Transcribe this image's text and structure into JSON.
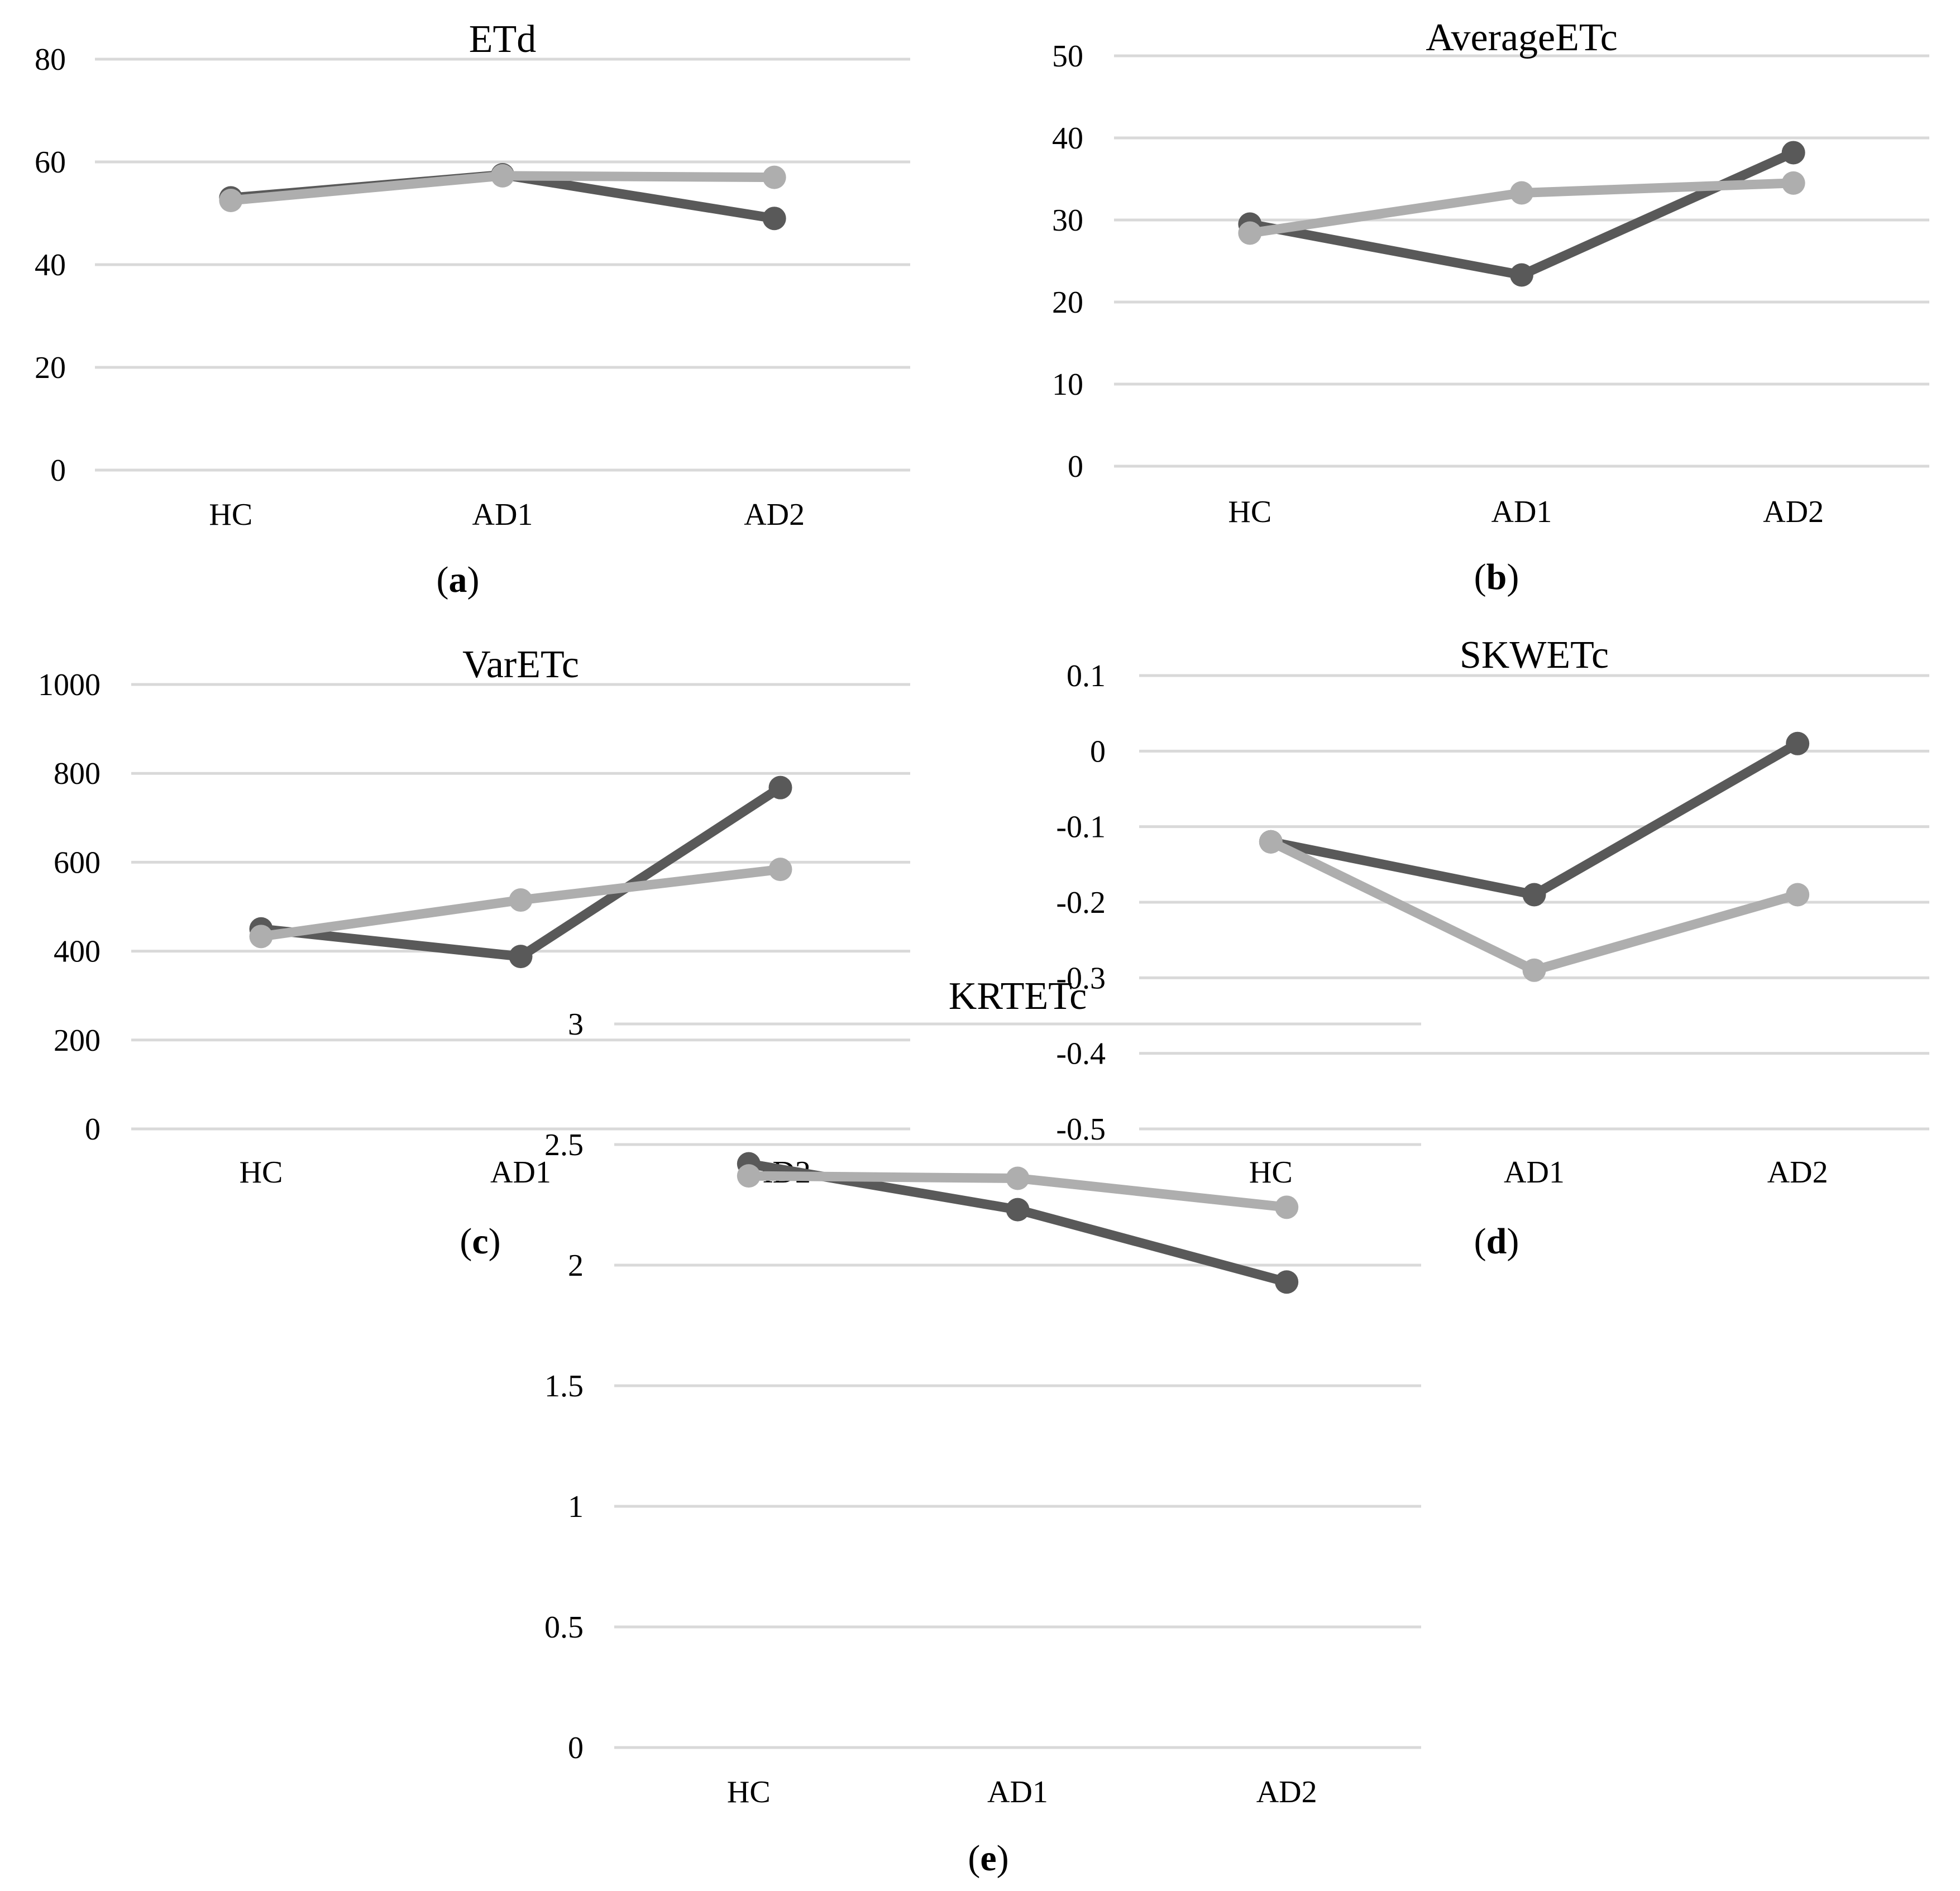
{
  "colors": {
    "series_dark": "#595959",
    "series_light": "#aeaeae",
    "grid": "#d9d9d9"
  },
  "chart_data": [
    {
      "panel": "a",
      "type": "line",
      "title": "ETd",
      "caption": "a",
      "categories": [
        "HC",
        "AD1",
        "AD2"
      ],
      "y_ticks": [
        0,
        20,
        40,
        60,
        80
      ],
      "ylim": [
        0,
        80
      ],
      "series": [
        {
          "name": "dark",
          "values": [
            53,
            57.5,
            49
          ]
        },
        {
          "name": "light",
          "values": [
            52.5,
            57.3,
            57
          ]
        }
      ]
    },
    {
      "panel": "b",
      "type": "line",
      "title": "AverageETc",
      "caption": "b",
      "categories": [
        "HC",
        "AD1",
        "AD2"
      ],
      "y_ticks": [
        0,
        10,
        20,
        30,
        40,
        50
      ],
      "ylim": [
        0,
        50
      ],
      "series": [
        {
          "name": "dark",
          "values": [
            29.5,
            23.3,
            38.2
          ]
        },
        {
          "name": "light",
          "values": [
            28.4,
            33.3,
            34.5
          ]
        }
      ]
    },
    {
      "panel": "c",
      "type": "line",
      "title": "VarETc",
      "caption": "c",
      "categories": [
        "HC",
        "AD1",
        "AD2"
      ],
      "y_ticks": [
        0,
        200,
        400,
        600,
        800,
        1000
      ],
      "ylim": [
        0,
        1000
      ],
      "series": [
        {
          "name": "dark",
          "values": [
            450,
            388,
            768
          ]
        },
        {
          "name": "light",
          "values": [
            433,
            515,
            584
          ]
        }
      ]
    },
    {
      "panel": "d",
      "type": "line",
      "title": "SKWETc",
      "caption": "d",
      "categories": [
        "HC",
        "AD1",
        "AD2"
      ],
      "y_ticks": [
        -0.5,
        -0.4,
        -0.3,
        -0.2,
        -0.1,
        0,
        0.1
      ],
      "ylim": [
        -0.5,
        0.1
      ],
      "series": [
        {
          "name": "dark",
          "values": [
            -0.12,
            -0.19,
            0.01
          ]
        },
        {
          "name": "light",
          "values": [
            -0.12,
            -0.29,
            -0.19
          ]
        }
      ]
    },
    {
      "panel": "e",
      "type": "line",
      "title": "KRTETc",
      "caption": "e",
      "categories": [
        "HC",
        "AD1",
        "AD2"
      ],
      "y_ticks": [
        0,
        0.5,
        1,
        1.5,
        2,
        2.5,
        3
      ],
      "ylim": [
        0,
        3
      ],
      "series": [
        {
          "name": "dark",
          "values": [
            2.42,
            2.23,
            1.93
          ]
        },
        {
          "name": "light",
          "values": [
            2.37,
            2.36,
            2.24
          ]
        }
      ]
    }
  ]
}
